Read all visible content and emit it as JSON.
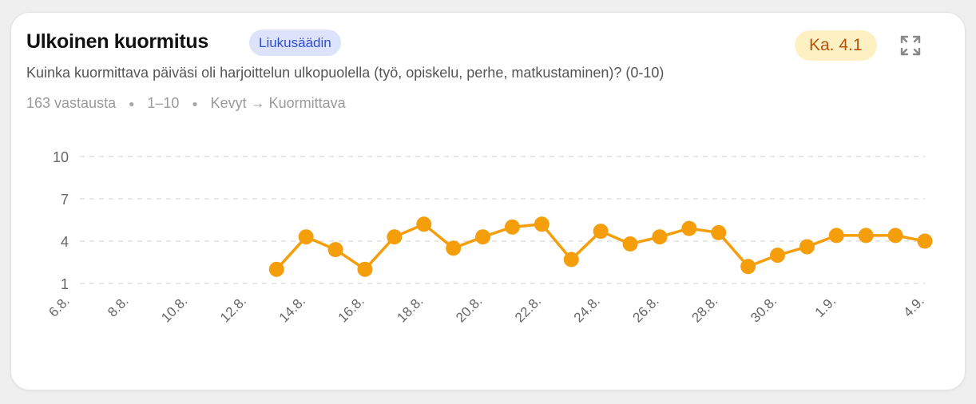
{
  "card": {
    "title": "Ulkoinen kuormitus",
    "badge": "Liukusäädin",
    "average": "Ka. 4.1",
    "expand_icon": "expand-icon",
    "subtitle": "Kuinka kuormittava päiväsi oli harjoittelun ulkopuolella (työ, opiskelu, perhe, matkustaminen)? (0-10)",
    "meta": {
      "responses": "163 vastausta",
      "range": "1–10",
      "scale": "Kevyt → Kuormittava"
    }
  },
  "colors": {
    "series": "#f59e0b",
    "badge_bg": "#dde3fb",
    "badge_text": "#2f4fcf",
    "avg_bg": "#fdf1c4",
    "avg_text": "#b4540c"
  },
  "chart_data": {
    "type": "line",
    "y_ticks": [
      10,
      7,
      4,
      1
    ],
    "ylim": [
      1,
      10
    ],
    "x_tick_labels": [
      "6.8.",
      "8.8.",
      "10.8.",
      "12.8.",
      "14.8.",
      "16.8.",
      "18.8.",
      "20.8.",
      "22.8.",
      "24.8.",
      "26.8.",
      "28.8.",
      "30.8.",
      "1.9.",
      "4.9."
    ],
    "x_tick_days": [
      0,
      2,
      4,
      6,
      8,
      10,
      12,
      14,
      16,
      18,
      20,
      22,
      24,
      26,
      29
    ],
    "grid": true,
    "series": [
      {
        "days": [
          7,
          8,
          9,
          10,
          11,
          12,
          13,
          14,
          15,
          16,
          17,
          18,
          19,
          20,
          21,
          22,
          23,
          24,
          25,
          26,
          27,
          28,
          29
        ],
        "values": [
          2.0,
          4.3,
          3.4,
          2.0,
          4.3,
          5.2,
          3.5,
          4.3,
          5.0,
          5.2,
          2.7,
          4.7,
          3.8,
          4.3,
          4.9,
          4.6,
          2.2,
          3.0,
          3.6,
          4.4,
          4.4,
          4.4,
          4.0
        ]
      }
    ]
  }
}
